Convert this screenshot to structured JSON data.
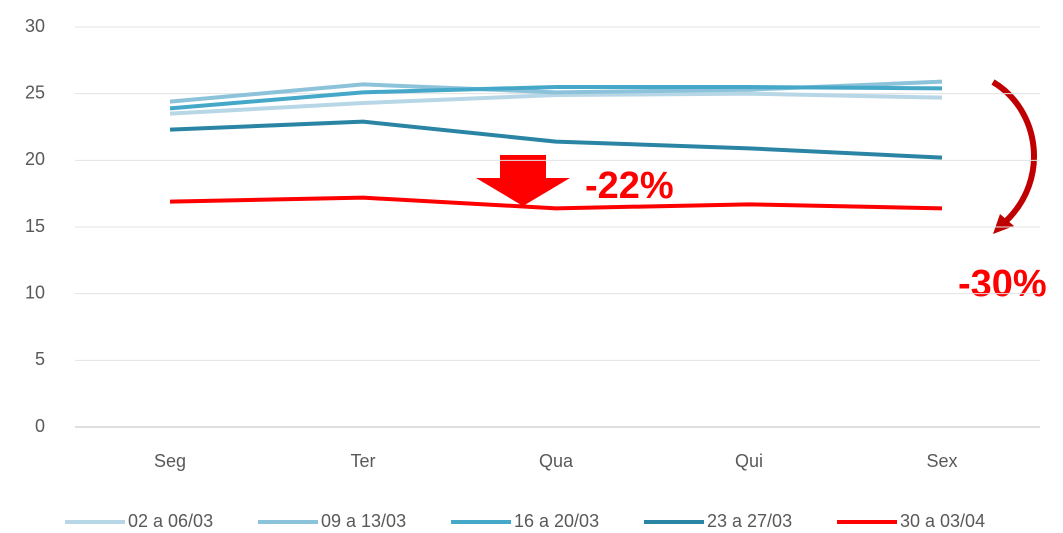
{
  "chart_data": {
    "type": "line",
    "categories": [
      "Seg",
      "Ter",
      "Qua",
      "Qui",
      "Sex"
    ],
    "series": [
      {
        "name": "02 a 06/03",
        "color": "#b7d6e6",
        "values": [
          23.5,
          24.3,
          24.9,
          25.0,
          24.7
        ]
      },
      {
        "name": "09 a 13/03",
        "color": "#8cc2da",
        "values": [
          24.4,
          25.7,
          25.1,
          25.3,
          25.9
        ]
      },
      {
        "name": "16 a 20/03",
        "color": "#45a8c8",
        "values": [
          23.9,
          25.1,
          25.5,
          25.5,
          25.4
        ]
      },
      {
        "name": "23 a 27/03",
        "color": "#2a84a3",
        "values": [
          22.3,
          22.9,
          21.4,
          20.9,
          20.2
        ]
      },
      {
        "name": "30 a 03/04",
        "color": "#ff0000",
        "values": [
          16.9,
          17.2,
          16.4,
          16.7,
          16.4
        ]
      }
    ],
    "ylim": [
      0,
      30
    ],
    "yticks": [
      0,
      5,
      10,
      15,
      20,
      25,
      30
    ],
    "grid": true,
    "annotations": [
      "-22%",
      "-30%"
    ],
    "legend": "bottom"
  }
}
